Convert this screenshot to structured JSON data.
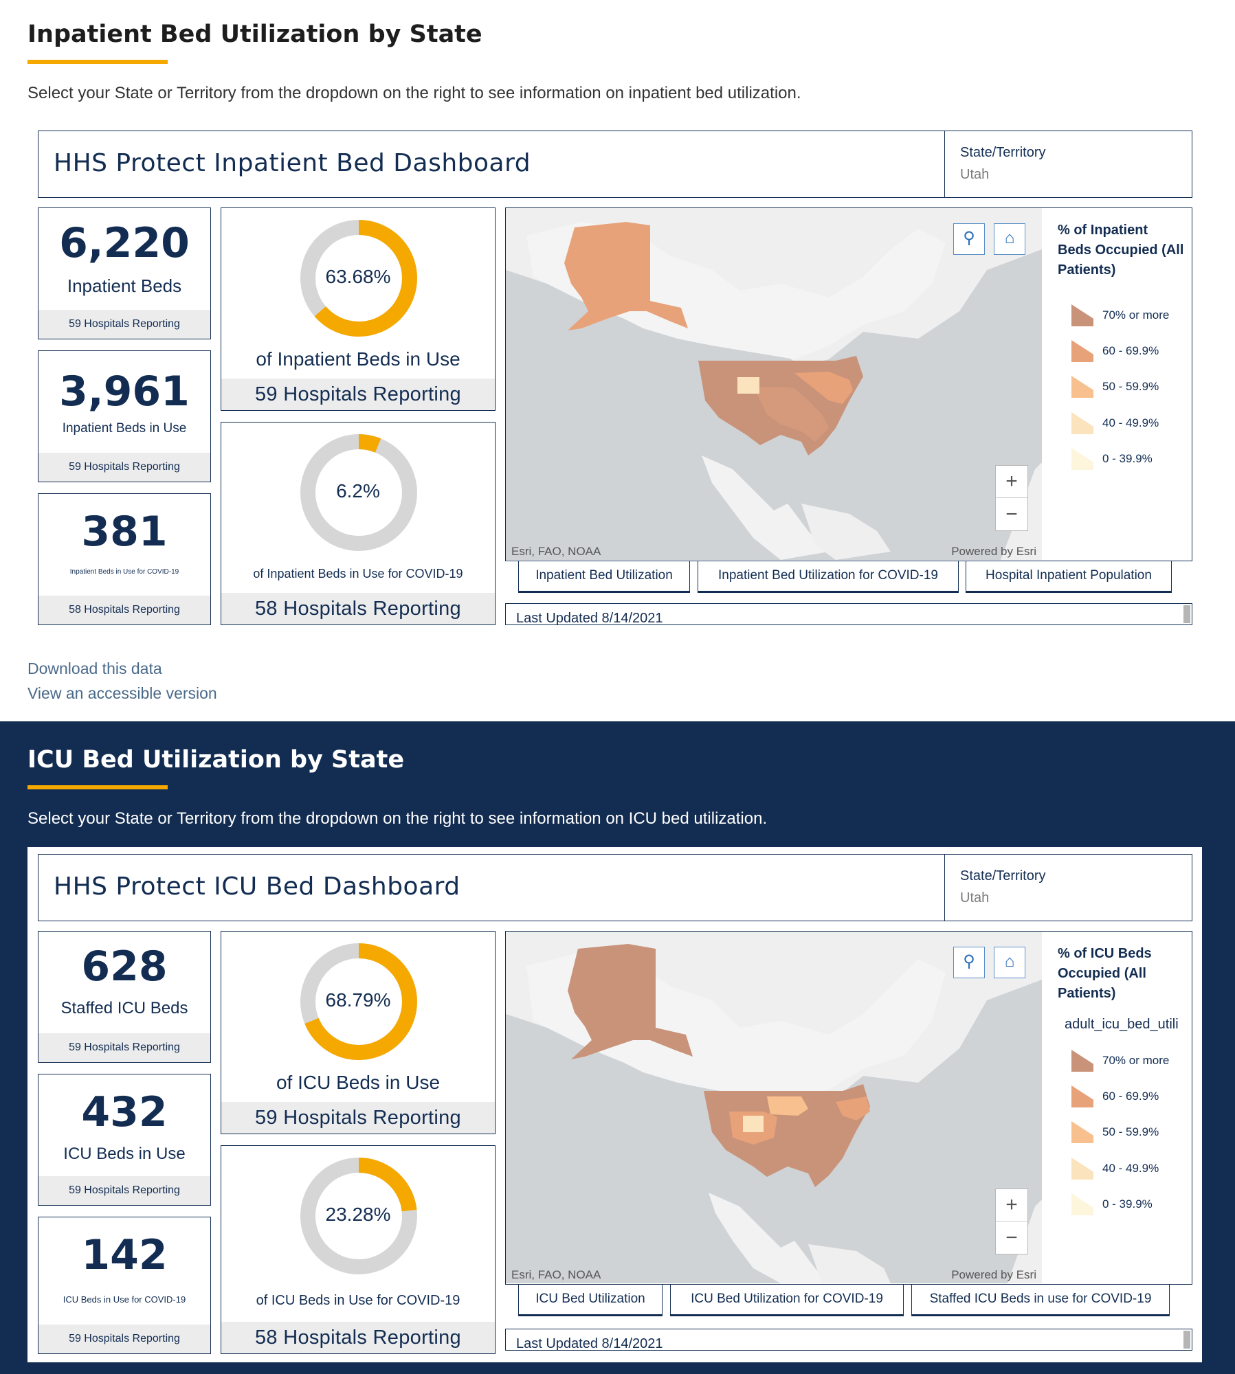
{
  "inpatient": {
    "section_title": "Inpatient Bed Utilization by State",
    "description": "Select your State or Territory from the dropdown on the right to see information on inpatient bed utilization.",
    "dashboard_title": "HHS Protect Inpatient Bed Dashboard",
    "state_label": "State/Territory",
    "state_value": "Utah",
    "kpis": [
      {
        "value": "6,220",
        "label": "Inpatient Beds",
        "footer": "59 Hospitals Reporting"
      },
      {
        "value": "3,961",
        "label": "Inpatient Beds in Use",
        "footer": "59 Hospitals Reporting"
      },
      {
        "value": "381",
        "label": "Inpatient Beds in Use for COVID-19",
        "footer": "58 Hospitals Reporting"
      }
    ],
    "donuts": [
      {
        "percent_text": "63.68%",
        "fraction": 0.6368,
        "label": "of Inpatient Beds in Use",
        "footer": "59 Hospitals Reporting"
      },
      {
        "percent_text": "6.2%",
        "fraction": 0.062,
        "label": "of Inpatient Beds in Use for COVID-19",
        "footer": "58 Hospitals Reporting"
      }
    ],
    "legend": {
      "title": "% of Inpatient Beds Occupied (All Patients)",
      "field": "",
      "items": [
        {
          "label": "70% or more",
          "color": "#c9937a"
        },
        {
          "label": "60 - 69.9%",
          "color": "#e8a27a"
        },
        {
          "label": "50 - 59.9%",
          "color": "#f8c08e"
        },
        {
          "label": "40 - 49.9%",
          "color": "#fbe3bd"
        },
        {
          "label": "0 - 39.9%",
          "color": "#fdf6dc"
        }
      ]
    },
    "map": {
      "attribution_left": "Esri, FAO, NOAA",
      "attribution_right": "Powered by Esri"
    },
    "tabs": [
      "Inpatient Bed Utilization",
      "Inpatient Bed Utilization for COVID-19",
      "Hospital Inpatient Population"
    ],
    "last_updated": "Last Updated 8/14/2021",
    "links": [
      "Download this data",
      "View an accessible version"
    ]
  },
  "icu": {
    "section_title": "ICU Bed Utilization by State",
    "description": "Select your State or Territory from the dropdown on the right to see information on ICU bed utilization.",
    "dashboard_title": "HHS Protect ICU Bed Dashboard",
    "state_label": "State/Territory",
    "state_value": "Utah",
    "kpis": [
      {
        "value": "628",
        "label": "Staffed ICU Beds",
        "footer": "59 Hospitals Reporting"
      },
      {
        "value": "432",
        "label": "ICU Beds in Use",
        "footer": "59 Hospitals Reporting"
      },
      {
        "value": "142",
        "label": "ICU Beds in Use for COVID-19",
        "footer": "59 Hospitals Reporting"
      }
    ],
    "donuts": [
      {
        "percent_text": "68.79%",
        "fraction": 0.6879,
        "label": "of ICU Beds in Use",
        "footer": "59 Hospitals Reporting"
      },
      {
        "percent_text": "23.28%",
        "fraction": 0.2328,
        "label": "of ICU Beds in Use for COVID-19",
        "footer": "58 Hospitals Reporting"
      }
    ],
    "legend": {
      "title": "% of ICU Beds Occupied (All Patients)",
      "field": "adult_icu_bed_utili",
      "items": [
        {
          "label": "70% or more",
          "color": "#c9937a"
        },
        {
          "label": "60 - 69.9%",
          "color": "#e8a27a"
        },
        {
          "label": "50 - 59.9%",
          "color": "#f8c08e"
        },
        {
          "label": "40 - 49.9%",
          "color": "#fbe3bd"
        },
        {
          "label": "0 - 39.9%",
          "color": "#fdf6dc"
        }
      ]
    },
    "map": {
      "attribution_left": "Esri, FAO, NOAA",
      "attribution_right": "Powered by Esri"
    },
    "tabs": [
      "ICU Bed Utilization",
      "ICU Bed Utilization for COVID-19",
      "Staffed ICU Beds in use for COVID-19"
    ],
    "last_updated": "Last Updated 8/14/2021"
  },
  "icons": {
    "search": "search-icon",
    "home": "home-icon",
    "zoom_in": "zoom-in-icon",
    "zoom_out": "zoom-out-icon"
  },
  "colors": {
    "navy": "#132d52",
    "accent": "#f5a800",
    "donut_track": "#d6d6d6"
  }
}
